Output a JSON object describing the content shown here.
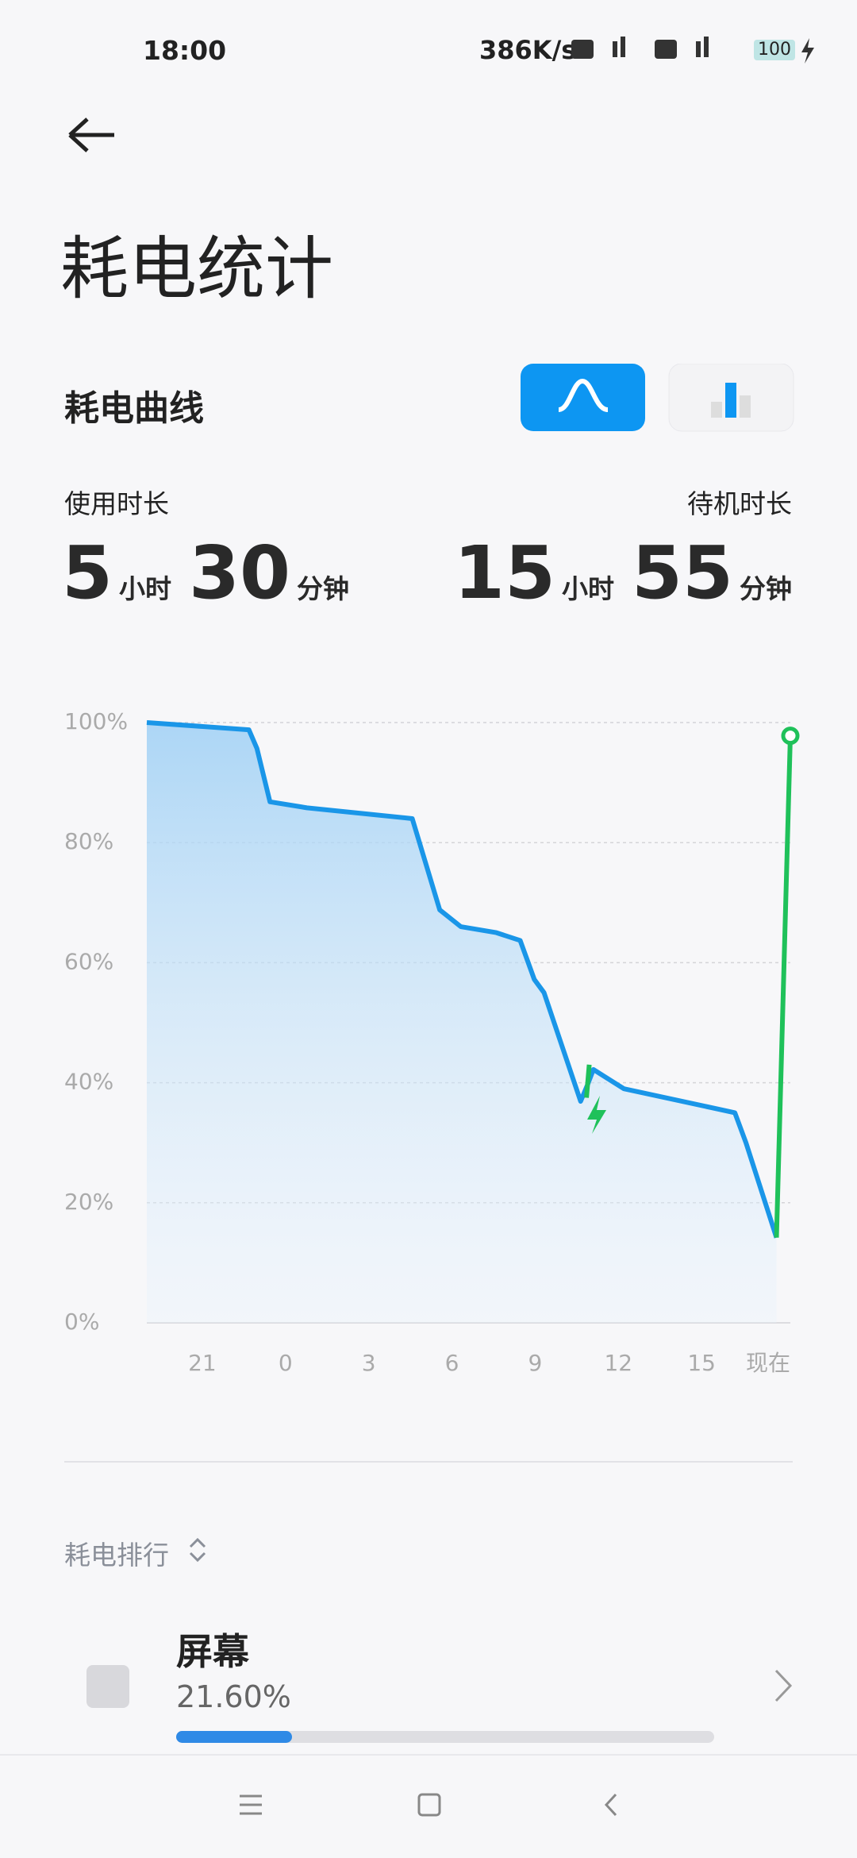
{
  "status_bar": {
    "time": "18:00",
    "net_speed": "386K/s",
    "battery": "100"
  },
  "header": {
    "title": "耗电统计"
  },
  "usage": {
    "title": "耗电曲线",
    "screen_on": {
      "label": "使用时长",
      "hours": "5",
      "hours_unit": "小时",
      "minutes": "30",
      "minutes_unit": "分钟"
    },
    "standby": {
      "label": "待机时长",
      "hours": "15",
      "hours_unit": "小时",
      "minutes": "55",
      "minutes_unit": "分钟"
    }
  },
  "chart_data": {
    "type": "line",
    "xlim": [
      -5,
      18.2
    ],
    "ylim": [
      0,
      100
    ],
    "xticks": [
      {
        "value": -3,
        "label": "21"
      },
      0,
      3,
      6,
      9,
      12,
      15,
      {
        "value": 17.5,
        "label": "现在"
      }
    ],
    "yticks": [
      {
        "value": 0,
        "label": "0%"
      },
      {
        "value": 20,
        "label": "20%"
      },
      {
        "value": 40,
        "label": "40%"
      },
      {
        "value": 60,
        "label": "60%"
      },
      {
        "value": 80,
        "label": "80%"
      },
      {
        "value": 100,
        "label": "100%"
      }
    ],
    "grid": true,
    "series": [
      {
        "color": "#1a96e8",
        "fill": true,
        "x": [
          -5,
          -1.32,
          -1.03,
          -0.56,
          0.77,
          4.57,
          5.56,
          6.32,
          7.6,
          8.46,
          8.97,
          9.32,
          10.64,
          10.9,
          11.1,
          12.2,
          16.2,
          16.6,
          17.7
        ],
        "values": [
          100,
          98.8,
          95.7,
          86.8,
          85.8,
          84,
          68.8,
          66,
          65,
          63.7,
          57.2,
          55,
          36.9,
          39.8,
          42.2,
          39,
          35,
          30,
          14.2
        ]
      },
      {
        "color": "#1fc15a",
        "x": [
          10.85,
          10.95
        ],
        "values": [
          37.5,
          43
        ]
      },
      {
        "color": "#1fc15a",
        "end_marker": true,
        "x": [
          17.7,
          18.2
        ],
        "values": [
          14.2,
          97.8
        ]
      }
    ]
  },
  "ranking": {
    "title": "耗电排行",
    "items": [
      {
        "name": "屏幕",
        "value": 21.6,
        "value_label": "21.60%"
      }
    ]
  }
}
